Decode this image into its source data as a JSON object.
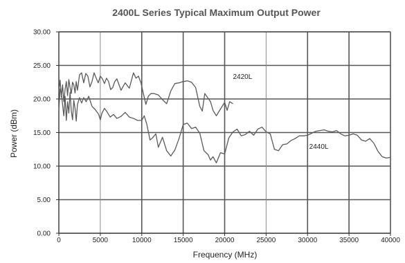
{
  "chart_data": {
    "type": "line",
    "title": "2400L Series Typical Maximum Output Power",
    "xlabel": "Frequency (MHz)",
    "ylabel": "Power (dBm)",
    "xlim": [
      0,
      40000
    ],
    "ylim": [
      0,
      30
    ],
    "xticks": [
      "0",
      "5000",
      "10000",
      "15000",
      "20000",
      "25000",
      "30000",
      "35000",
      "40000"
    ],
    "yticks": [
      "0.00",
      "5.00",
      "10.00",
      "15.00",
      "20.00",
      "25.00",
      "30.00"
    ],
    "grid": true,
    "line_color": "#5a5a5a",
    "grid_color": "#555555",
    "series": [
      {
        "name": "2420L",
        "x": [
          0,
          150,
          300,
          450,
          600,
          750,
          900,
          1050,
          1200,
          1350,
          1500,
          1650,
          1800,
          1950,
          2100,
          2250,
          2500,
          2750,
          3000,
          3250,
          3500,
          3750,
          4000,
          4250,
          4500,
          4750,
          5000,
          5250,
          5500,
          5750,
          6000,
          6250,
          6500,
          6750,
          7000,
          7500,
          8000,
          8500,
          9000,
          9300,
          9600,
          9900,
          10200,
          10500,
          10800,
          11100,
          11500,
          12000,
          12500,
          13000,
          13500,
          14000,
          14500,
          15000,
          15500,
          16000,
          16500,
          17000,
          17300,
          17600,
          18000,
          18300,
          18600,
          19000,
          19300,
          19600,
          20000,
          20300,
          20600,
          21000
        ],
        "values": [
          21.2,
          22.8,
          20.3,
          22.1,
          19.6,
          21.4,
          22.6,
          20.5,
          22.9,
          21.7,
          20.8,
          22.5,
          22.1,
          20.9,
          22.6,
          21.3,
          23.6,
          23.9,
          22.4,
          23.8,
          23.4,
          21.8,
          22.6,
          23.9,
          23.1,
          22.4,
          23.4,
          23.0,
          22.3,
          23.1,
          22.6,
          21.4,
          21.7,
          22.6,
          23.0,
          21.3,
          22.4,
          21.6,
          23.9,
          23.1,
          23.4,
          22.4,
          20.8,
          19.2,
          20.4,
          20.8,
          20.8,
          20.6,
          19.9,
          19.3,
          21.2,
          22.3,
          22.4,
          22.6,
          22.7,
          22.5,
          21.7,
          18.9,
          18.2,
          20.8,
          20.1,
          19.6,
          18.3,
          17.5,
          18.1,
          18.7,
          19.5,
          18.3,
          19.6,
          19.3
        ]
      },
      {
        "name": "2440L",
        "x": [
          0,
          150,
          300,
          450,
          600,
          750,
          900,
          1050,
          1200,
          1350,
          1500,
          1650,
          1800,
          1950,
          2100,
          2250,
          2500,
          2750,
          3000,
          3300,
          3600,
          4000,
          4400,
          4800,
          5000,
          5200,
          5500,
          5800,
          6200,
          6600,
          7000,
          7500,
          8000,
          8500,
          9000,
          9500,
          10000,
          10300,
          10600,
          11000,
          11300,
          11700,
          12000,
          12500,
          13000,
          13500,
          14000,
          14500,
          15000,
          15500,
          16000,
          16500,
          17000,
          17500,
          18000,
          18300,
          18600,
          19000,
          19500,
          20000,
          20500,
          21000,
          21500,
          22000,
          22500,
          23000,
          23500,
          24000,
          24500,
          25000,
          25500,
          26000,
          26500,
          27000,
          27500,
          28000,
          28500,
          29000,
          29500,
          30000,
          30500,
          31000,
          31500,
          32000,
          32500,
          33000,
          33500,
          34000,
          34500,
          35000,
          35500,
          36000,
          36500,
          37000,
          37500,
          38000,
          38500,
          39000,
          39500,
          40000
        ],
        "values": [
          18.3,
          21.5,
          20.9,
          19.1,
          17.5,
          20.4,
          16.8,
          19.6,
          17.9,
          21.0,
          18.2,
          16.9,
          19.8,
          18.6,
          16.7,
          19.2,
          20.2,
          19.4,
          20.2,
          19.6,
          20.4,
          18.9,
          18.4,
          17.7,
          16.9,
          17.9,
          18.6,
          18.1,
          17.3,
          17.7,
          17.1,
          17.4,
          18.0,
          17.3,
          17.1,
          16.8,
          16.8,
          17.5,
          16.3,
          13.9,
          14.2,
          14.8,
          12.8,
          14.3,
          12.3,
          11.5,
          12.4,
          14.1,
          16.2,
          16.4,
          15.6,
          15.8,
          14.9,
          12.3,
          11.7,
          10.9,
          11.4,
          10.5,
          12.0,
          11.8,
          14.2,
          15.1,
          15.5,
          14.5,
          14.7,
          15.2,
          14.6,
          15.5,
          15.8,
          15.1,
          14.8,
          12.5,
          12.3,
          13.2,
          13.3,
          13.8,
          14.1,
          14.5,
          14.5,
          14.6,
          14.9,
          15.2,
          15.3,
          15.4,
          15.2,
          15.1,
          15.3,
          14.8,
          14.5,
          14.6,
          14.8,
          14.6,
          13.9,
          13.7,
          14.1,
          13.4,
          12.2,
          11.4,
          11.2,
          11.3
        ]
      }
    ]
  }
}
